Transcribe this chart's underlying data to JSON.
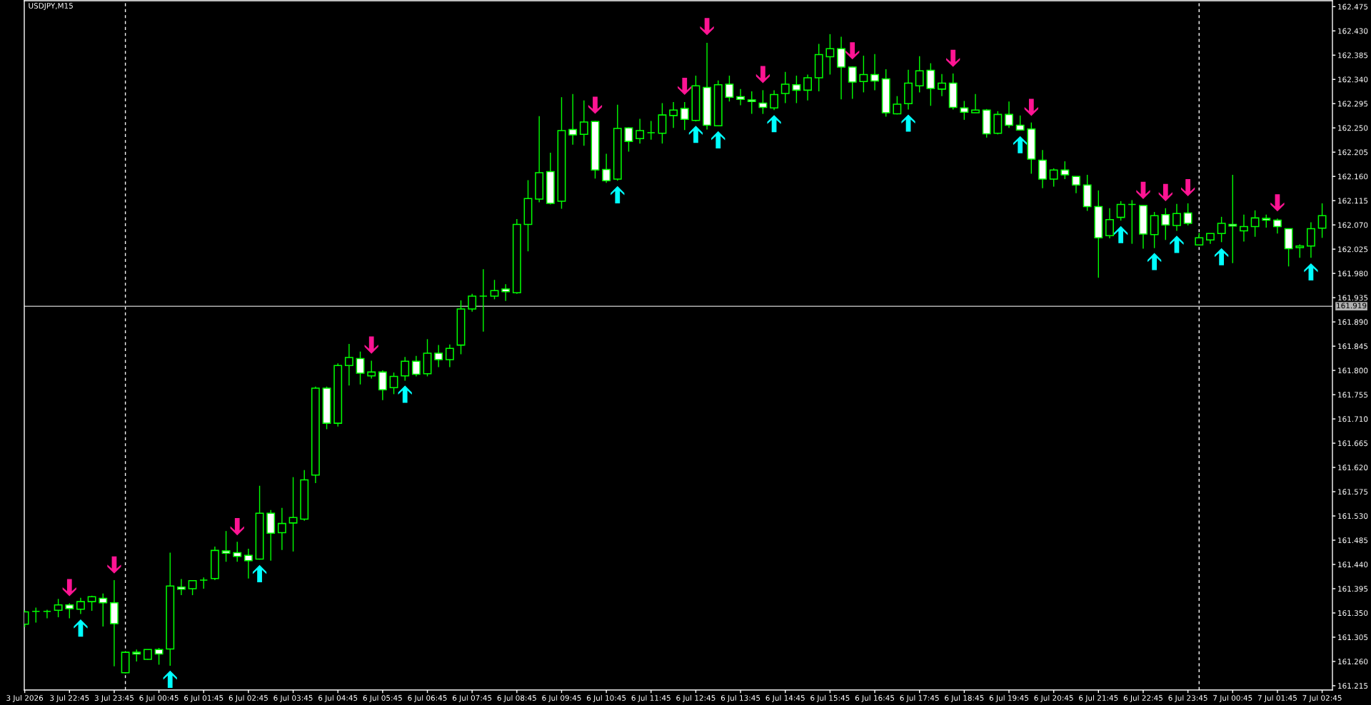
{
  "chart_data": {
    "type": "candlestick",
    "title": "USDJPY,M15",
    "categories": [
      "3 Jul 2026",
      null,
      null,
      null,
      "3 Jul 22:45",
      null,
      null,
      null,
      "3 Jul 23:45",
      null,
      null,
      null,
      "6 Jul 00:45",
      null,
      null,
      null,
      "6 Jul 01:45",
      null,
      null,
      null,
      "6 Jul 02:45",
      null,
      null,
      null,
      "6 Jul 03:45",
      null,
      null,
      null,
      "6 Jul 04:45",
      null,
      null,
      null,
      "6 Jul 05:45",
      null,
      null,
      null,
      "6 Jul 06:45",
      null,
      null,
      null,
      "6 Jul 07:45",
      null,
      null,
      null,
      "6 Jul 08:45",
      null,
      null,
      null,
      "6 Jul 09:45",
      null,
      null,
      null,
      "6 Jul 10:45",
      null,
      null,
      null,
      "6 Jul 11:45",
      null,
      null,
      null,
      "6 Jul 12:45",
      null,
      null,
      null,
      "6 Jul 13:45",
      null,
      null,
      null,
      "6 Jul 14:45",
      null,
      null,
      null,
      "6 Jul 15:45",
      null,
      null,
      null,
      "6 Jul 16:45",
      null,
      null,
      null,
      "6 Jul 17:45",
      null,
      null,
      null,
      "6 Jul 18:45",
      null,
      null,
      null,
      "6 Jul 19:45",
      null,
      null,
      null,
      "6 Jul 20:45",
      null,
      null,
      null,
      "6 Jul 21:45",
      null,
      null,
      null,
      "6 Jul 22:45",
      null,
      null,
      null,
      "6 Jul 23:45",
      null,
      null,
      null,
      "7 Jul 00:45",
      null,
      null,
      null,
      "7 Jul 01:45",
      null,
      null,
      null,
      "7 Jul 02:45"
    ],
    "ohlc": [
      [
        161.329,
        161.355,
        161.324,
        161.352
      ],
      [
        161.353,
        161.36,
        161.332,
        161.353
      ],
      [
        161.353,
        161.356,
        161.34,
        161.353
      ],
      [
        161.355,
        161.376,
        161.342,
        161.365
      ],
      [
        161.365,
        161.368,
        161.34,
        161.358
      ],
      [
        161.357,
        161.378,
        161.348,
        161.371
      ],
      [
        161.371,
        161.382,
        161.354,
        161.38
      ],
      [
        161.377,
        161.386,
        161.325,
        161.369
      ],
      [
        161.369,
        161.411,
        161.251,
        161.33
      ],
      [
        161.239,
        161.278,
        161.238,
        161.277
      ],
      [
        161.277,
        161.282,
        161.26,
        161.274
      ],
      [
        161.264,
        161.282,
        161.263,
        161.282
      ],
      [
        161.282,
        161.285,
        161.254,
        161.274
      ],
      [
        161.283,
        161.462,
        161.252,
        161.4
      ],
      [
        161.398,
        161.413,
        161.383,
        161.394
      ],
      [
        161.395,
        161.41,
        161.383,
        161.41
      ],
      [
        161.411,
        161.416,
        161.395,
        161.411
      ],
      [
        161.414,
        161.473,
        161.411,
        161.466
      ],
      [
        161.465,
        161.502,
        161.445,
        161.461
      ],
      [
        161.462,
        161.482,
        161.445,
        161.455
      ],
      [
        161.457,
        161.469,
        161.414,
        161.447
      ],
      [
        161.45,
        161.586,
        161.449,
        161.535
      ],
      [
        161.535,
        161.541,
        161.447,
        161.498
      ],
      [
        161.499,
        161.545,
        161.467,
        161.516
      ],
      [
        161.517,
        161.602,
        161.464,
        161.527
      ],
      [
        161.524,
        161.615,
        161.521,
        161.597
      ],
      [
        161.606,
        161.77,
        161.591,
        161.767
      ],
      [
        161.767,
        161.77,
        161.691,
        161.702
      ],
      [
        161.702,
        161.813,
        161.696,
        161.809
      ],
      [
        161.809,
        161.849,
        161.772,
        161.824
      ],
      [
        161.822,
        161.835,
        161.774,
        161.795
      ],
      [
        161.79,
        161.818,
        161.785,
        161.797
      ],
      [
        161.797,
        161.8,
        161.745,
        161.764
      ],
      [
        161.768,
        161.796,
        161.756,
        161.789
      ],
      [
        161.79,
        161.825,
        161.781,
        161.817
      ],
      [
        161.817,
        161.827,
        161.789,
        161.793
      ],
      [
        161.794,
        161.858,
        161.789,
        161.832
      ],
      [
        161.832,
        161.847,
        161.806,
        161.82
      ],
      [
        161.82,
        161.848,
        161.806,
        161.841
      ],
      [
        161.847,
        161.93,
        161.83,
        161.914
      ],
      [
        161.914,
        161.942,
        161.909,
        161.938
      ],
      [
        161.938,
        161.988,
        161.872,
        161.938
      ],
      [
        161.938,
        161.968,
        161.932,
        161.948
      ],
      [
        161.951,
        161.96,
        161.929,
        161.946
      ],
      [
        161.944,
        162.081,
        161.942,
        162.071
      ],
      [
        162.071,
        162.153,
        162.021,
        162.119
      ],
      [
        162.118,
        162.272,
        162.112,
        162.167
      ],
      [
        162.169,
        162.204,
        162.108,
        162.11
      ],
      [
        162.114,
        162.307,
        162.1,
        162.245
      ],
      [
        162.247,
        162.313,
        162.219,
        162.237
      ],
      [
        162.238,
        162.301,
        162.217,
        162.261
      ],
      [
        162.262,
        162.263,
        162.156,
        162.172
      ],
      [
        162.173,
        162.202,
        162.148,
        162.152
      ],
      [
        162.155,
        162.293,
        162.152,
        162.249
      ],
      [
        162.25,
        162.251,
        162.206,
        162.225
      ],
      [
        162.23,
        162.267,
        162.221,
        162.245
      ],
      [
        162.241,
        162.263,
        162.228,
        162.241
      ],
      [
        162.24,
        162.296,
        162.221,
        162.274
      ],
      [
        162.273,
        162.298,
        162.25,
        162.283
      ],
      [
        162.286,
        162.298,
        162.246,
        162.266
      ],
      [
        162.264,
        162.347,
        162.262,
        162.328
      ],
      [
        162.325,
        162.408,
        162.247,
        162.255
      ],
      [
        162.254,
        162.338,
        162.254,
        162.33
      ],
      [
        162.331,
        162.347,
        162.299,
        162.307
      ],
      [
        162.308,
        162.322,
        162.292,
        162.303
      ],
      [
        162.302,
        162.318,
        162.276,
        162.299
      ],
      [
        162.296,
        162.32,
        162.276,
        162.288
      ],
      [
        162.287,
        162.32,
        162.283,
        162.312
      ],
      [
        162.314,
        162.354,
        162.296,
        162.331
      ],
      [
        162.33,
        162.347,
        162.296,
        162.32
      ],
      [
        162.32,
        162.349,
        162.301,
        162.343
      ],
      [
        162.343,
        162.406,
        162.318,
        162.386
      ],
      [
        162.382,
        162.424,
        162.349,
        162.397
      ],
      [
        162.397,
        162.419,
        162.303,
        162.363
      ],
      [
        162.363,
        162.364,
        162.304,
        162.335
      ],
      [
        162.336,
        162.384,
        162.316,
        162.349
      ],
      [
        162.349,
        162.387,
        162.32,
        162.337
      ],
      [
        162.341,
        162.359,
        162.271,
        162.278
      ],
      [
        162.276,
        162.309,
        162.275,
        162.294
      ],
      [
        162.295,
        162.358,
        162.284,
        162.333
      ],
      [
        162.328,
        162.383,
        162.316,
        162.356
      ],
      [
        162.357,
        162.37,
        162.291,
        162.323
      ],
      [
        162.322,
        162.35,
        162.309,
        162.333
      ],
      [
        162.333,
        162.351,
        162.284,
        162.288
      ],
      [
        162.287,
        162.3,
        162.265,
        162.279
      ],
      [
        162.278,
        162.313,
        162.278,
        162.283
      ],
      [
        162.283,
        162.285,
        162.232,
        162.239
      ],
      [
        162.24,
        162.281,
        162.238,
        162.275
      ],
      [
        162.275,
        162.299,
        162.25,
        162.255
      ],
      [
        162.255,
        162.273,
        162.245,
        162.246
      ],
      [
        162.248,
        162.26,
        162.165,
        162.192
      ],
      [
        162.19,
        162.209,
        162.138,
        162.155
      ],
      [
        162.155,
        162.175,
        162.141,
        162.172
      ],
      [
        162.172,
        162.188,
        162.155,
        162.163
      ],
      [
        162.16,
        162.16,
        162.129,
        162.144
      ],
      [
        162.144,
        162.163,
        162.096,
        162.104
      ],
      [
        162.104,
        162.134,
        161.972,
        162.046
      ],
      [
        162.05,
        162.101,
        162.045,
        162.08
      ],
      [
        162.084,
        162.114,
        162.078,
        162.108
      ],
      [
        162.108,
        162.116,
        162.035,
        162.108
      ],
      [
        162.106,
        162.106,
        162.026,
        162.053
      ],
      [
        162.052,
        162.094,
        162.027,
        162.087
      ],
      [
        162.089,
        162.101,
        162.042,
        162.07
      ],
      [
        162.069,
        162.109,
        162.059,
        162.091
      ],
      [
        162.092,
        162.11,
        162.069,
        162.073
      ],
      [
        162.033,
        162.055,
        162.032,
        162.046
      ],
      [
        162.042,
        162.054,
        162.035,
        162.054
      ],
      [
        162.054,
        162.085,
        162.038,
        162.073
      ],
      [
        162.071,
        162.163,
        161.999,
        162.068
      ],
      [
        162.059,
        162.089,
        162.039,
        162.067
      ],
      [
        162.067,
        162.097,
        162.048,
        162.083
      ],
      [
        162.082,
        162.089,
        162.065,
        162.079
      ],
      [
        162.079,
        162.082,
        162.054,
        162.067
      ],
      [
        162.063,
        162.063,
        161.993,
        162.026
      ],
      [
        162.028,
        162.034,
        162.009,
        162.031
      ],
      [
        162.031,
        162.075,
        162.009,
        162.063
      ],
      [
        162.064,
        162.11,
        162.046,
        162.087
      ]
    ],
    "color": "#00ff00",
    "colors": [
      "#000000",
      "#00ff00",
      "#00ff00",
      "#000000",
      "#ffffff",
      "#000000",
      "#000000",
      "#ffffff",
      "#ffffff",
      "#000000",
      "#ffffff",
      "#000000",
      "#ffffff",
      "#000000",
      "#ffffff",
      "#000000",
      "#00ff00",
      "#000000",
      "#ffffff",
      "#ffffff",
      "#ffffff",
      "#000000",
      "#ffffff",
      "#000000",
      "#000000",
      "#000000",
      "#000000",
      "#ffffff",
      "#000000",
      "#000000",
      "#ffffff",
      "#000000",
      "#ffffff",
      "#000000",
      "#000000",
      "#ffffff",
      "#000000",
      "#ffffff",
      "#000000",
      "#000000",
      "#000000",
      "#00ff00",
      "#000000",
      "#ffffff",
      "#000000",
      "#000000",
      "#000000",
      "#ffffff",
      "#000000",
      "#ffffff",
      "#000000",
      "#ffffff",
      "#ffffff",
      "#000000",
      "#ffffff",
      "#000000",
      "#00ff00",
      "#000000",
      "#000000",
      "#ffffff",
      "#000000",
      "#ffffff",
      "#000000",
      "#ffffff",
      "#ffffff",
      "#ffffff",
      "#ffffff",
      "#000000",
      "#000000",
      "#ffffff",
      "#000000",
      "#000000",
      "#000000",
      "#ffffff",
      "#ffffff",
      "#000000",
      "#ffffff",
      "#ffffff",
      "#000000",
      "#000000",
      "#000000",
      "#ffffff",
      "#000000",
      "#ffffff",
      "#ffffff",
      "#000000",
      "#ffffff",
      "#000000",
      "#ffffff",
      "#ffffff",
      "#ffffff",
      "#ffffff",
      "#000000",
      "#ffffff",
      "#ffffff",
      "#ffffff",
      "#ffffff",
      "#000000",
      "#000000",
      "#00ff00",
      "#ffffff",
      "#000000",
      "#ffffff",
      "#000000",
      "#ffffff",
      "#000000",
      "#000000",
      "#000000",
      "#ffffff",
      "#000000",
      "#000000",
      "#ffffff",
      "#ffffff",
      "#ffffff",
      "#000000",
      "#000000",
      "#000000"
    ],
    "series": [
      {
        "type": "scatter",
        "color": "#ff1493",
        "marker": "triangle",
        "values": [
          null,
          null,
          null,
          null,
          161.397,
          null,
          null,
          null,
          161.439,
          null,
          null,
          null,
          null,
          null,
          null,
          null,
          null,
          null,
          null,
          161.51,
          null,
          null,
          null,
          null,
          null,
          null,
          null,
          null,
          null,
          null,
          null,
          161.847,
          null,
          null,
          null,
          null,
          null,
          null,
          null,
          null,
          null,
          null,
          null,
          null,
          null,
          null,
          null,
          null,
          null,
          null,
          null,
          162.292,
          null,
          null,
          null,
          null,
          null,
          null,
          null,
          162.327,
          null,
          162.438,
          null,
          null,
          null,
          null,
          162.349,
          null,
          null,
          null,
          null,
          null,
          null,
          null,
          162.393,
          null,
          null,
          null,
          null,
          null,
          null,
          null,
          null,
          162.379,
          null,
          null,
          null,
          null,
          null,
          null,
          162.288,
          null,
          null,
          null,
          null,
          null,
          null,
          null,
          null,
          null,
          162.134,
          null,
          162.13,
          null,
          162.139,
          null,
          null,
          null,
          null,
          null,
          null,
          null,
          162.111,
          null,
          null,
          null,
          null
        ]
      },
      {
        "type": "scatter",
        "color": "#00ffff",
        "marker": "triangle",
        "values": [
          null,
          null,
          null,
          null,
          null,
          161.322,
          null,
          null,
          null,
          null,
          null,
          null,
          null,
          161.227,
          null,
          null,
          null,
          null,
          null,
          null,
          null,
          161.423,
          null,
          null,
          null,
          null,
          null,
          null,
          null,
          null,
          null,
          null,
          null,
          null,
          161.756,
          null,
          null,
          null,
          null,
          null,
          null,
          null,
          null,
          null,
          null,
          null,
          null,
          null,
          null,
          null,
          null,
          null,
          null,
          162.126,
          null,
          null,
          null,
          null,
          null,
          null,
          162.238,
          null,
          162.228,
          null,
          null,
          null,
          null,
          162.258,
          null,
          null,
          null,
          null,
          null,
          null,
          null,
          null,
          null,
          null,
          null,
          162.259,
          null,
          null,
          null,
          null,
          null,
          null,
          null,
          null,
          null,
          162.219,
          null,
          null,
          null,
          null,
          null,
          null,
          null,
          null,
          162.052,
          null,
          null,
          162.002,
          null,
          162.034,
          null,
          null,
          null,
          162.011,
          null,
          null,
          null,
          null,
          null,
          null,
          null,
          161.983,
          null
        ]
      }
    ],
    "ylim": [
      161.207,
      162.486
    ],
    "yticks": [
      161.215,
      {
        "value": 161.26,
        "label": "161.260"
      },
      161.305,
      {
        "value": 161.35,
        "label": "161.350"
      },
      161.395,
      {
        "value": 161.44,
        "label": "161.440"
      },
      161.485,
      {
        "value": 161.53,
        "label": "161.530"
      },
      161.575,
      {
        "value": 161.62,
        "label": "161.620"
      },
      161.665,
      {
        "value": 161.71,
        "label": "161.710"
      },
      161.755,
      {
        "value": 161.8,
        "label": "161.800"
      },
      161.845,
      {
        "value": 161.89,
        "label": "161.890"
      },
      161.935,
      {
        "value": 161.98,
        "label": "161.980"
      },
      162.025,
      {
        "value": 162.07,
        "label": "162.070"
      },
      162.115,
      {
        "value": 162.16,
        "label": "162.160"
      },
      162.205,
      {
        "value": 162.25,
        "label": "162.250"
      },
      162.295,
      {
        "value": 162.34,
        "label": "162.340"
      },
      162.385,
      {
        "value": 162.43,
        "label": "162.430"
      },
      162.475
    ],
    "ref_lines": [
      {
        "axis": "y",
        "value": 161.919,
        "label": "161.919",
        "color": "#b0b0b0",
        "line_style": "solid"
      }
    ]
  }
}
